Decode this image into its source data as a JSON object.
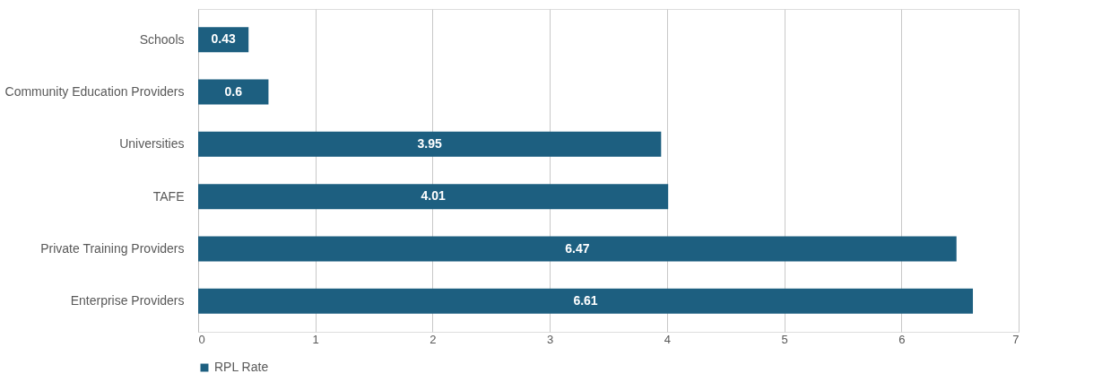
{
  "chart_data": {
    "type": "bar",
    "orientation": "horizontal",
    "categories": [
      "Schools",
      "Community Education Providers",
      "Universities",
      "TAFE",
      "Private Training Providers",
      "Enterprise Providers"
    ],
    "series": [
      {
        "name": "RPL Rate",
        "color": "#1d5f80",
        "values": [
          0.43,
          0.6,
          3.95,
          4.01,
          6.47,
          6.61
        ]
      }
    ],
    "xlim": [
      0,
      7
    ],
    "xticks": [
      0,
      1,
      2,
      3,
      4,
      5,
      6,
      7
    ],
    "grid": "x",
    "legend": "bottom",
    "data_labels": true
  }
}
